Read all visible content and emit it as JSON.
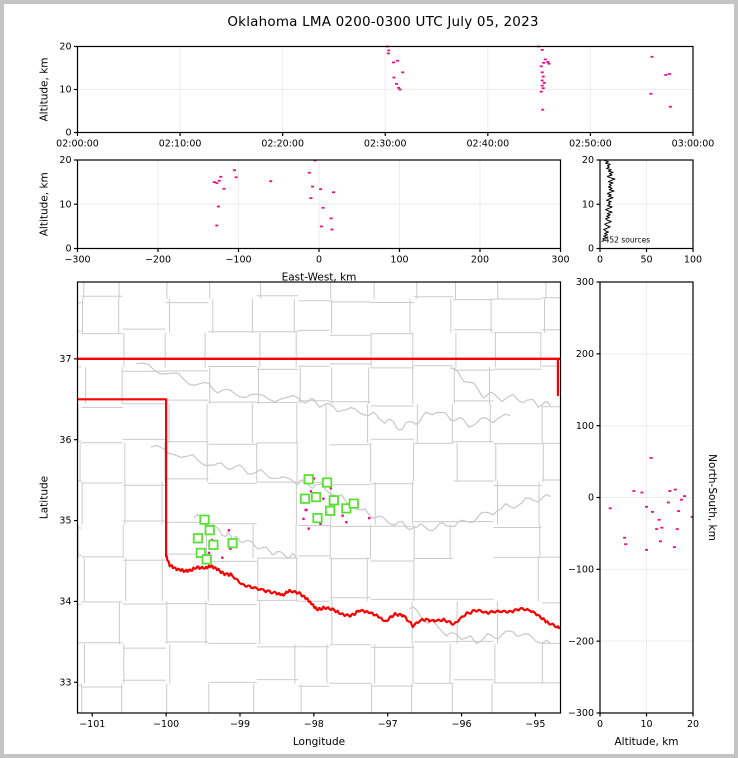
{
  "title": "Oklahoma LMA 0200-0300 UTC July 05, 2023",
  "colors": {
    "source_marker": "#EC0D8C",
    "flash_marker": "#57E232",
    "state_border": "#FA0000",
    "county_line": "#CBCBCB",
    "river_line": "#C8C8C8",
    "gridline": "#EDEDED",
    "frame": "#000000",
    "figure_border": "#C4C4C4",
    "histogram_line": "#000000"
  },
  "chart_data": [
    {
      "id": "time_height",
      "type": "scatter",
      "x": {
        "label": "",
        "min": 0,
        "max": 60,
        "ticks": [
          0,
          10,
          20,
          30,
          40,
          50,
          60
        ],
        "tick_labels": [
          "02:00:00",
          "02:10:00",
          "02:20:00",
          "02:30:00",
          "02:40:00",
          "02:50:00",
          "03:00:00"
        ],
        "grid": true
      },
      "y": {
        "label": "Altitude, km",
        "min": 0,
        "max": 20,
        "ticks": [
          0,
          10,
          20
        ],
        "tick_labels": [
          "0",
          "10",
          "20"
        ],
        "grid": true
      },
      "points": [
        [
          30.2,
          20
        ],
        [
          30.35,
          19.1
        ],
        [
          30.3,
          18.4
        ],
        [
          30.8,
          16.3
        ],
        [
          31.2,
          16.7
        ],
        [
          31.7,
          14.0
        ],
        [
          30.85,
          12.8
        ],
        [
          31.1,
          11.3
        ],
        [
          31.3,
          10.4
        ],
        [
          31.45,
          10.0
        ],
        [
          44.95,
          20
        ],
        [
          45.3,
          19.2
        ],
        [
          45.6,
          17.0
        ],
        [
          45.85,
          16.4
        ],
        [
          45.45,
          16.2
        ],
        [
          45.95,
          16.0
        ],
        [
          45.2,
          15.4
        ],
        [
          45.3,
          14.0
        ],
        [
          45.4,
          13.0
        ],
        [
          45.3,
          12.1
        ],
        [
          45.5,
          11.5
        ],
        [
          45.3,
          10.9
        ],
        [
          45.4,
          10.3
        ],
        [
          45.2,
          9.5
        ],
        [
          45.35,
          5.3
        ],
        [
          56.0,
          17.6
        ],
        [
          57.7,
          13.6
        ],
        [
          57.35,
          13.4
        ],
        [
          55.9,
          9.0
        ],
        [
          57.8,
          6.0
        ]
      ]
    },
    {
      "id": "ew_height",
      "type": "scatter",
      "x": {
        "label": "East-West, km",
        "min": -300,
        "max": 300,
        "ticks": [
          -300,
          -200,
          -100,
          0,
          100,
          200,
          300
        ],
        "tick_labels": [
          "−300",
          "−200",
          "−100",
          "0",
          "100",
          "200",
          "300"
        ],
        "grid": true
      },
      "y": {
        "label": "Altitude, km",
        "min": 0,
        "max": 20,
        "ticks": [
          0,
          10,
          20
        ],
        "tick_labels": [
          "0",
          "10",
          "20"
        ],
        "grid": true
      },
      "points": [
        [
          -130,
          15.0
        ],
        [
          -127,
          14.8
        ],
        [
          -124,
          15.3
        ],
        [
          -122,
          16.2
        ],
        [
          -118,
          13.5
        ],
        [
          -125,
          9.5
        ],
        [
          -127,
          5.2
        ],
        [
          -105,
          17.7
        ],
        [
          -103,
          16.1
        ],
        [
          -60,
          15.2
        ],
        [
          -12,
          17.1
        ],
        [
          -5,
          19.9
        ],
        [
          -8,
          14.0
        ],
        [
          -10,
          11.4
        ],
        [
          2,
          13.4
        ],
        [
          5,
          9.2
        ],
        [
          3,
          5.0
        ],
        [
          18,
          12.7
        ],
        [
          15,
          6.8
        ],
        [
          16,
          4.3
        ]
      ]
    },
    {
      "id": "alt_histogram",
      "type": "line",
      "annotation": "452 sources",
      "x": {
        "label": "",
        "min": 0,
        "max": 100,
        "ticks": [
          0,
          50,
          100
        ],
        "tick_labels": [
          "0",
          "50",
          "100"
        ],
        "grid": true
      },
      "y": {
        "label": "",
        "min": 0,
        "max": 20,
        "ticks": [
          0,
          10,
          20
        ],
        "tick_labels": [
          "0",
          "10",
          "20"
        ],
        "grid": true
      },
      "profile": [
        [
          2,
          1.6
        ],
        [
          5,
          1.9
        ],
        [
          3,
          2.2
        ],
        [
          7,
          2.5
        ],
        [
          4,
          2.8
        ],
        [
          8,
          3.1
        ],
        [
          5,
          3.4
        ],
        [
          9,
          3.7
        ],
        [
          6,
          4.0
        ],
        [
          4,
          4.3
        ],
        [
          8,
          4.6
        ],
        [
          11,
          4.9
        ],
        [
          7,
          5.2
        ],
        [
          5,
          5.5
        ],
        [
          9,
          5.8
        ],
        [
          12,
          6.1
        ],
        [
          8,
          6.4
        ],
        [
          6,
          6.7
        ],
        [
          10,
          7.0
        ],
        [
          7,
          7.3
        ],
        [
          11,
          7.6
        ],
        [
          8,
          7.9
        ],
        [
          13,
          8.2
        ],
        [
          9,
          8.5
        ],
        [
          6,
          8.8
        ],
        [
          10,
          9.1
        ],
        [
          13,
          9.4
        ],
        [
          8,
          9.7
        ],
        [
          11,
          10.0
        ],
        [
          9,
          10.3
        ],
        [
          12,
          10.6
        ],
        [
          7,
          10.9
        ],
        [
          10,
          11.2
        ],
        [
          14,
          11.5
        ],
        [
          9,
          11.8
        ],
        [
          12,
          12.1
        ],
        [
          8,
          12.4
        ],
        [
          11,
          12.7
        ],
        [
          15,
          13.0
        ],
        [
          10,
          13.3
        ],
        [
          13,
          13.6
        ],
        [
          9,
          13.9
        ],
        [
          12,
          14.2
        ],
        [
          10,
          14.5
        ],
        [
          14,
          14.8
        ],
        [
          9,
          15.1
        ],
        [
          12,
          15.4
        ],
        [
          16,
          15.7
        ],
        [
          11,
          16.0
        ],
        [
          8,
          16.3
        ],
        [
          13,
          16.6
        ],
        [
          10,
          16.9
        ],
        [
          14,
          17.2
        ],
        [
          9,
          17.5
        ],
        [
          12,
          17.8
        ],
        [
          7,
          18.1
        ],
        [
          10,
          18.4
        ],
        [
          8,
          18.7
        ],
        [
          11,
          19.0
        ],
        [
          6,
          19.3
        ],
        [
          9,
          19.6
        ],
        [
          5,
          19.9
        ]
      ]
    },
    {
      "id": "plan_view",
      "type": "map-scatter",
      "x": {
        "label": "Longitude",
        "min": -101.2,
        "max": -94.66,
        "ticks": [
          -101,
          -100,
          -99,
          -98,
          -97,
          -96,
          -95
        ],
        "tick_labels": [
          "−101",
          "−100",
          "−99",
          "−98",
          "−97",
          "−96",
          "−95"
        ],
        "grid": false
      },
      "y": {
        "label": "Latitude",
        "min": 32.62,
        "max": 37.95,
        "ticks": [
          33,
          34,
          35,
          36,
          37
        ],
        "tick_labels": [
          "33",
          "34",
          "35",
          "36",
          "37"
        ],
        "grid": false
      },
      "sources": [
        [
          -98.0,
          35.52
        ],
        [
          -98.04,
          35.36
        ],
        [
          -97.92,
          35.33
        ],
        [
          -98.11,
          35.13
        ],
        [
          -97.77,
          35.4
        ],
        [
          -97.61,
          35.06
        ],
        [
          -98.07,
          34.9
        ],
        [
          -97.91,
          34.96
        ],
        [
          -98.14,
          35.02
        ],
        [
          -97.76,
          35.09
        ],
        [
          -97.72,
          35.2
        ],
        [
          -97.87,
          35.27
        ],
        [
          -97.56,
          34.98
        ],
        [
          -97.25,
          35.03
        ],
        [
          -98.1,
          35.13
        ],
        [
          -99.36,
          34.89
        ],
        [
          -99.38,
          34.76
        ],
        [
          -99.13,
          34.65
        ],
        [
          -99.42,
          34.6
        ],
        [
          -99.15,
          34.88
        ],
        [
          -99.24,
          34.54
        ]
      ],
      "flash_init": [
        [
          -98.07,
          35.51
        ],
        [
          -97.82,
          35.47
        ],
        [
          -98.12,
          35.27
        ],
        [
          -97.97,
          35.29
        ],
        [
          -97.73,
          35.25
        ],
        [
          -97.78,
          35.12
        ],
        [
          -97.56,
          35.15
        ],
        [
          -97.46,
          35.21
        ],
        [
          -97.95,
          35.03
        ],
        [
          -99.48,
          35.01
        ],
        [
          -99.41,
          34.88
        ],
        [
          -99.57,
          34.78
        ],
        [
          -99.36,
          34.7
        ],
        [
          -99.53,
          34.6
        ],
        [
          -99.45,
          34.52
        ],
        [
          -99.1,
          34.72
        ]
      ],
      "state_border": {
        "north_border": [
          [
            -101.2,
            37.0
          ],
          [
            -94.66,
            37.0
          ]
        ],
        "panhandle": [
          [
            -101.2,
            36.5
          ],
          [
            -100.0,
            36.5
          ],
          [
            -100.0,
            34.56
          ]
        ],
        "east_segment": [
          [
            -94.695,
            37.0
          ],
          [
            -94.695,
            36.55
          ]
        ],
        "red_river": [
          [
            -100.0,
            34.56
          ],
          [
            -99.95,
            34.45
          ],
          [
            -99.86,
            34.4
          ],
          [
            -99.77,
            34.38
          ],
          [
            -99.68,
            34.38
          ],
          [
            -99.58,
            34.42
          ],
          [
            -99.47,
            34.41
          ],
          [
            -99.4,
            34.44
          ],
          [
            -99.32,
            34.41
          ],
          [
            -99.22,
            34.34
          ],
          [
            -99.12,
            34.33
          ],
          [
            -98.97,
            34.21
          ],
          [
            -98.82,
            34.17
          ],
          [
            -98.65,
            34.13
          ],
          [
            -98.5,
            34.1
          ],
          [
            -98.42,
            34.08
          ],
          [
            -98.33,
            34.13
          ],
          [
            -98.2,
            34.1
          ],
          [
            -98.1,
            34.04
          ],
          [
            -98.03,
            33.97
          ],
          [
            -97.96,
            33.9
          ],
          [
            -97.86,
            33.92
          ],
          [
            -97.74,
            33.9
          ],
          [
            -97.62,
            33.84
          ],
          [
            -97.5,
            33.82
          ],
          [
            -97.38,
            33.89
          ],
          [
            -97.26,
            33.87
          ],
          [
            -97.14,
            33.82
          ],
          [
            -97.03,
            33.75
          ],
          [
            -96.91,
            33.84
          ],
          [
            -96.79,
            33.83
          ],
          [
            -96.66,
            33.7
          ],
          [
            -96.52,
            33.78
          ],
          [
            -96.38,
            33.76
          ],
          [
            -96.24,
            33.77
          ],
          [
            -96.1,
            33.72
          ],
          [
            -95.95,
            33.84
          ],
          [
            -95.8,
            33.89
          ],
          [
            -95.65,
            33.86
          ],
          [
            -95.5,
            33.88
          ],
          [
            -95.35,
            33.87
          ],
          [
            -95.2,
            33.91
          ],
          [
            -95.05,
            33.88
          ],
          [
            -94.92,
            33.8
          ],
          [
            -94.82,
            33.73
          ],
          [
            -94.68,
            33.67
          ]
        ]
      },
      "rivers": [
        [
          [
            -100.4,
            36.95
          ],
          [
            -99.6,
            36.7
          ],
          [
            -99.0,
            36.55
          ],
          [
            -98.2,
            36.5
          ],
          [
            -97.8,
            36.42
          ],
          [
            -97.2,
            36.3
          ],
          [
            -96.8,
            36.15
          ],
          [
            -96.35,
            36.35
          ],
          [
            -95.9,
            36.2
          ],
          [
            -95.35,
            36.3
          ]
        ],
        [
          [
            -100.2,
            35.92
          ],
          [
            -99.4,
            35.7
          ],
          [
            -98.9,
            35.62
          ],
          [
            -98.3,
            35.5
          ],
          [
            -97.9,
            35.42
          ],
          [
            -97.35,
            35.12
          ],
          [
            -96.9,
            34.95
          ],
          [
            -96.4,
            34.9
          ],
          [
            -95.9,
            35.0
          ],
          [
            -95.35,
            35.18
          ],
          [
            -94.8,
            35.3
          ]
        ],
        [
          [
            -99.62,
            35.05
          ],
          [
            -99.2,
            34.83
          ],
          [
            -99.0,
            34.76
          ],
          [
            -98.6,
            34.62
          ],
          [
            -98.25,
            34.55
          ]
        ],
        [
          [
            -96.7,
            33.92
          ],
          [
            -96.2,
            33.6
          ],
          [
            -95.8,
            33.52
          ],
          [
            -95.3,
            33.62
          ],
          [
            -94.8,
            33.48
          ]
        ],
        [
          [
            -96.15,
            36.9
          ],
          [
            -95.7,
            36.55
          ],
          [
            -95.2,
            36.5
          ],
          [
            -94.8,
            36.42
          ]
        ]
      ]
    },
    {
      "id": "ns_height",
      "type": "scatter",
      "x": {
        "label": "Altitude, km",
        "min": 0,
        "max": 20,
        "ticks": [
          0,
          10,
          20
        ],
        "tick_labels": [
          "0",
          "10",
          "20"
        ],
        "grid": true
      },
      "y": {
        "label": "North-South, km",
        "label_right": true,
        "min": -300,
        "max": 300,
        "ticks": [
          -300,
          -200,
          -100,
          0,
          100,
          200,
          300
        ],
        "tick_labels": [
          "−300",
          "−200",
          "−100",
          "0",
          "100",
          "200",
          "300"
        ],
        "grid": true
      },
      "points": [
        [
          11,
          55
        ],
        [
          2.2,
          -15
        ],
        [
          10,
          -13
        ],
        [
          9,
          7
        ],
        [
          7.3,
          9
        ],
        [
          14.7,
          -7
        ],
        [
          15,
          9
        ],
        [
          16.2,
          11
        ],
        [
          11.3,
          -20
        ],
        [
          16.9,
          -19
        ],
        [
          12.7,
          -31
        ],
        [
          13.3,
          -42
        ],
        [
          12.2,
          -44
        ],
        [
          16.6,
          -44
        ],
        [
          5.3,
          -56
        ],
        [
          5.5,
          -65
        ],
        [
          13,
          -61
        ],
        [
          16,
          -69
        ],
        [
          10,
          -73
        ],
        [
          19.8,
          -27
        ],
        [
          17.5,
          -3
        ],
        [
          18.2,
          2
        ]
      ]
    }
  ]
}
